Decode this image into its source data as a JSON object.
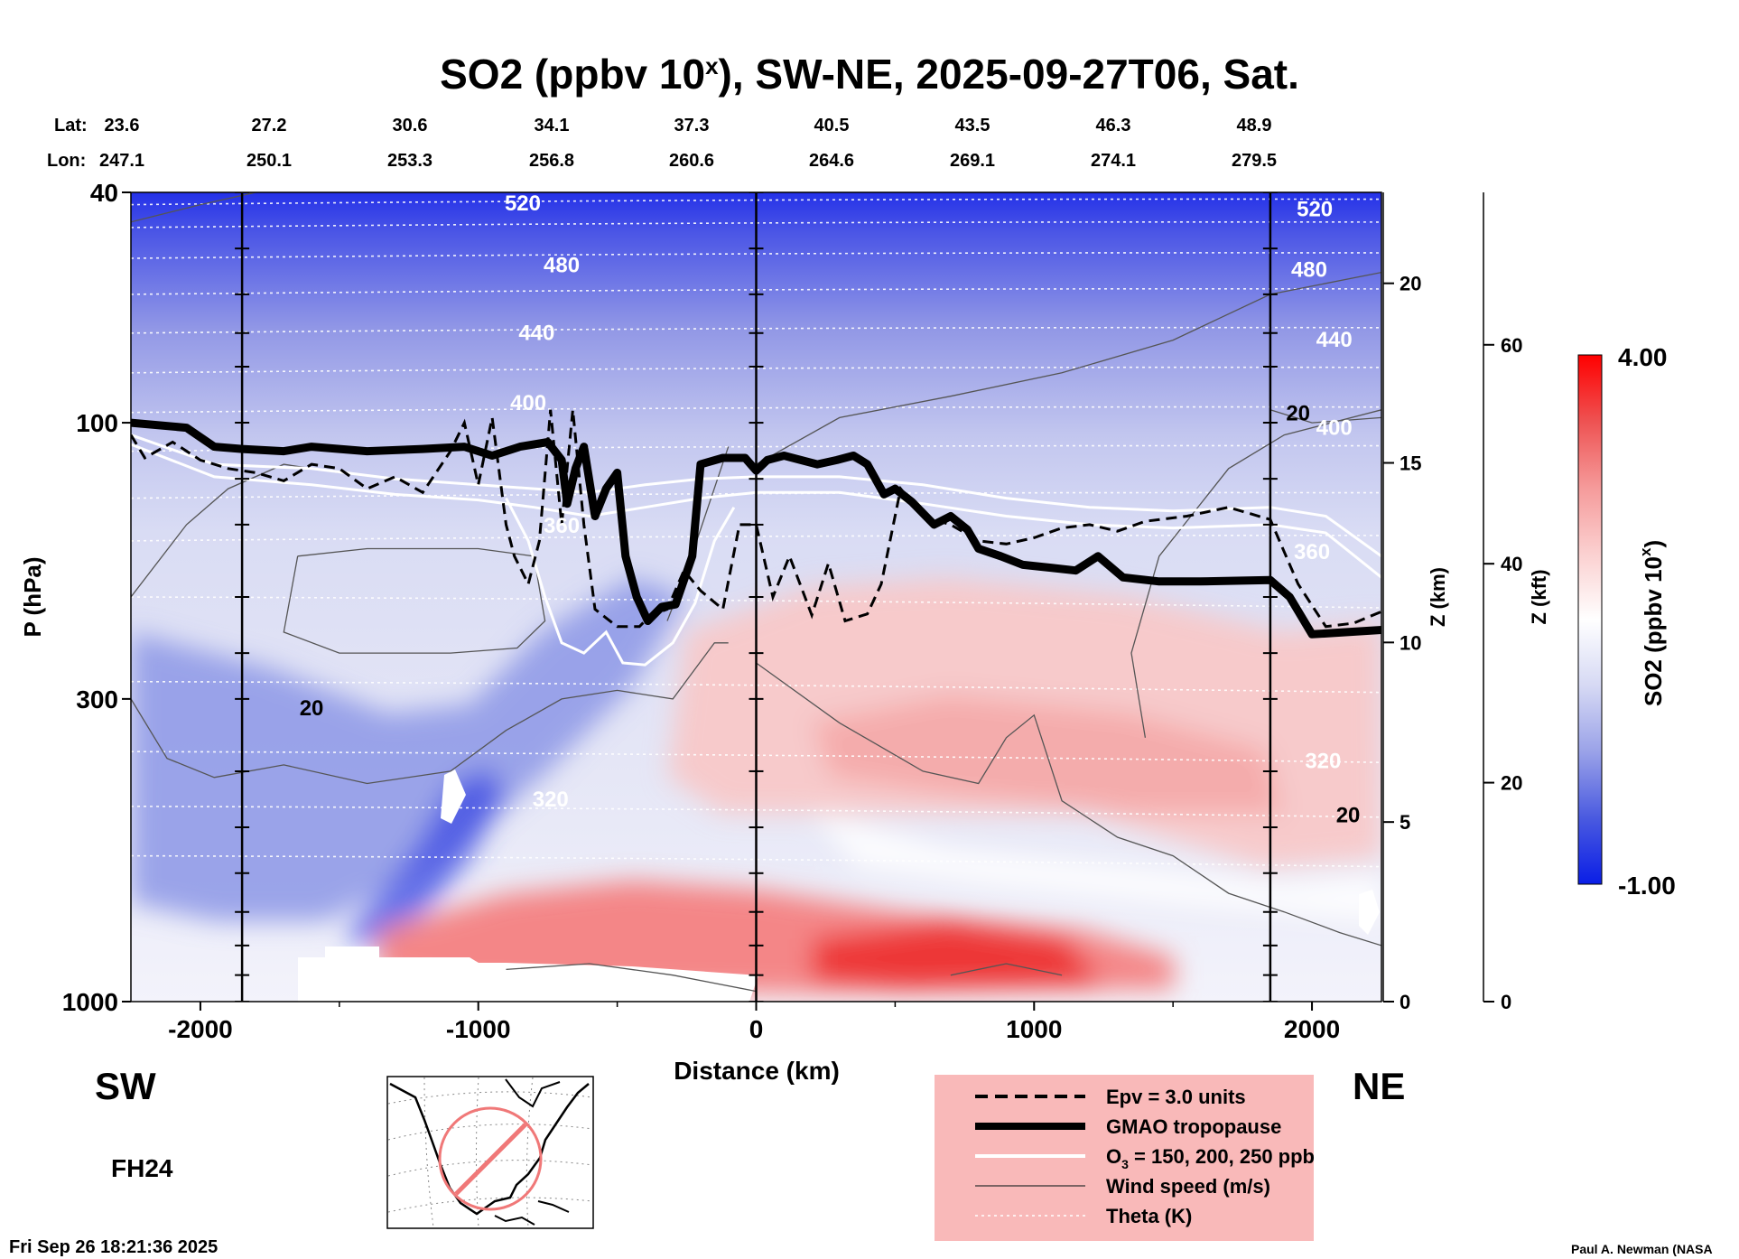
{
  "chart_data": {
    "type": "heatmap",
    "title": "SO2 (ppbv 10",
    "title_sup": "x",
    "title_tail": "), SW-NE, 2025-09-27T06, Sat.",
    "lat_label": "Lat:",
    "lon_label": "Lon:",
    "lat_ticks": [
      "23.6",
      "27.2",
      "30.6",
      "34.1",
      "37.3",
      "40.5",
      "43.5",
      "46.3",
      "48.9"
    ],
    "lon_ticks": [
      "247.1",
      "250.1",
      "253.3",
      "256.8",
      "260.6",
      "264.6",
      "269.1",
      "274.1",
      "279.5"
    ],
    "xlabel": "Distance (km)",
    "xlim": [
      -2250,
      2250
    ],
    "x_ticks": [
      -2000,
      -1000,
      0,
      1000,
      2000
    ],
    "x_tick_labels": [
      "-2000",
      "-1000",
      "0",
      "1000",
      "2000"
    ],
    "ylabel": "P (hPa)",
    "y_scale": "log",
    "ylim": [
      1000,
      40
    ],
    "y_ticks": [
      40,
      100,
      300,
      1000
    ],
    "y_tick_labels": [
      "40",
      "100",
      "300",
      "1000"
    ],
    "z_km_label": "Z (km)",
    "z_km_ticks": [
      0,
      5,
      10,
      15,
      20
    ],
    "z_km_tick_labels": [
      "0",
      "5",
      "10",
      "15",
      "20"
    ],
    "z_kft_label": "Z (kft)",
    "z_kft_ticks": [
      0,
      20,
      40,
      60
    ],
    "z_kft_tick_labels": [
      "0",
      "20",
      "40",
      "60"
    ],
    "colorbar_label": "SO2 (ppbv 10",
    "colorbar_label_sup": "x",
    "colorbar_label_tail": ")",
    "colorbar_range": [
      -1.0,
      4.0
    ],
    "colorbar_max_label": "4.00",
    "colorbar_min_label": "-1.00",
    "colormap": [
      "#0a1ee6",
      "#4a5ae0",
      "#9aa2e8",
      "#d6d9f4",
      "#ffffff",
      "#fbd0d0",
      "#f59a9a",
      "#ee5252",
      "#ff0000"
    ],
    "vertical_lines_km": [
      -1850,
      0,
      1850
    ],
    "theta_contour_labels": [
      {
        "text": "520",
        "x_km": -840,
        "p": 43
      },
      {
        "text": "480",
        "x_km": -700,
        "p": 55
      },
      {
        "text": "440",
        "x_km": -790,
        "p": 72
      },
      {
        "text": "400",
        "x_km": -820,
        "p": 95
      },
      {
        "text": "360",
        "x_km": -700,
        "p": 155
      },
      {
        "text": "320",
        "x_km": -740,
        "p": 460
      },
      {
        "text": "520",
        "x_km": 2010,
        "p": 44
      },
      {
        "text": "480",
        "x_km": 1990,
        "p": 56
      },
      {
        "text": "440",
        "x_km": 2080,
        "p": 74
      },
      {
        "text": "400",
        "x_km": 2080,
        "p": 105
      },
      {
        "text": "360",
        "x_km": 2000,
        "p": 172
      },
      {
        "text": "320",
        "x_km": 2040,
        "p": 395
      }
    ],
    "wind_contour_labels": [
      {
        "text": "20",
        "x_km": -1600,
        "p": 320
      },
      {
        "text": "20",
        "x_km": 1950,
        "p": 99
      },
      {
        "text": "20",
        "x_km": 2130,
        "p": 490
      }
    ],
    "tropopause": [
      [
        -2250,
        100
      ],
      [
        -2050,
        102
      ],
      [
        -1950,
        110
      ],
      [
        -1850,
        111
      ],
      [
        -1700,
        112
      ],
      [
        -1600,
        110
      ],
      [
        -1400,
        112
      ],
      [
        -1200,
        111
      ],
      [
        -1050,
        110
      ],
      [
        -950,
        114
      ],
      [
        -850,
        110
      ],
      [
        -750,
        108
      ],
      [
        -700,
        116
      ],
      [
        -680,
        138
      ],
      [
        -650,
        120
      ],
      [
        -620,
        110
      ],
      [
        -580,
        145
      ],
      [
        -540,
        130
      ],
      [
        -500,
        122
      ],
      [
        -470,
        170
      ],
      [
        -430,
        200
      ],
      [
        -390,
        220
      ],
      [
        -340,
        208
      ],
      [
        -290,
        206
      ],
      [
        -230,
        170
      ],
      [
        -200,
        118
      ],
      [
        -120,
        115
      ],
      [
        -40,
        115
      ],
      [
        0,
        121
      ],
      [
        40,
        116
      ],
      [
        100,
        114
      ],
      [
        220,
        118
      ],
      [
        290,
        116
      ],
      [
        350,
        114
      ],
      [
        400,
        118
      ],
      [
        460,
        133
      ],
      [
        500,
        130
      ],
      [
        560,
        137
      ],
      [
        640,
        150
      ],
      [
        700,
        145
      ],
      [
        760,
        153
      ],
      [
        800,
        165
      ],
      [
        880,
        170
      ],
      [
        960,
        176
      ],
      [
        1060,
        178
      ],
      [
        1150,
        180
      ],
      [
        1230,
        170
      ],
      [
        1320,
        185
      ],
      [
        1450,
        188
      ],
      [
        1600,
        188
      ],
      [
        1850,
        187
      ],
      [
        1920,
        200
      ],
      [
        2000,
        232
      ],
      [
        2250,
        228
      ]
    ],
    "epv_line": [
      [
        -2250,
        105
      ],
      [
        -2200,
        115
      ],
      [
        -2100,
        108
      ],
      [
        -2000,
        116
      ],
      [
        -1900,
        120
      ],
      [
        -1800,
        122
      ],
      [
        -1700,
        126
      ],
      [
        -1600,
        118
      ],
      [
        -1500,
        120
      ],
      [
        -1400,
        130
      ],
      [
        -1300,
        124
      ],
      [
        -1200,
        132
      ],
      [
        -1100,
        112
      ],
      [
        -1050,
        100
      ],
      [
        -1000,
        128
      ],
      [
        -950,
        98
      ],
      [
        -900,
        150
      ],
      [
        -870,
        170
      ],
      [
        -820,
        190
      ],
      [
        -780,
        160
      ],
      [
        -740,
        95
      ],
      [
        -700,
        150
      ],
      [
        -660,
        95
      ],
      [
        -620,
        150
      ],
      [
        -580,
        210
      ],
      [
        -500,
        225
      ],
      [
        -420,
        225
      ],
      [
        -380,
        215
      ],
      [
        -320,
        210
      ],
      [
        -260,
        180
      ],
      [
        -200,
        195
      ],
      [
        -120,
        210
      ],
      [
        -60,
        150
      ],
      [
        0,
        150
      ],
      [
        60,
        200
      ],
      [
        120,
        170
      ],
      [
        200,
        215
      ],
      [
        260,
        175
      ],
      [
        320,
        220
      ],
      [
        400,
        214
      ],
      [
        450,
        190
      ],
      [
        520,
        130
      ],
      [
        600,
        145
      ],
      [
        700,
        150
      ],
      [
        800,
        160
      ],
      [
        900,
        162
      ],
      [
        1000,
        158
      ],
      [
        1100,
        152
      ],
      [
        1200,
        150
      ],
      [
        1300,
        154
      ],
      [
        1400,
        148
      ],
      [
        1550,
        145
      ],
      [
        1700,
        140
      ],
      [
        1850,
        147
      ],
      [
        1950,
        190
      ],
      [
        2050,
        225
      ],
      [
        2150,
        222
      ],
      [
        2250,
        212
      ]
    ],
    "ozone_contours": [
      [
        [
          -2250,
          105
        ],
        [
          -1950,
          118
        ],
        [
          -1600,
          120
        ],
        [
          -1300,
          125
        ],
        [
          -1000,
          128
        ],
        [
          -800,
          130
        ],
        [
          -600,
          132
        ],
        [
          -400,
          128
        ],
        [
          -200,
          125
        ],
        [
          0,
          124
        ],
        [
          300,
          124
        ],
        [
          600,
          128
        ],
        [
          900,
          135
        ],
        [
          1200,
          140
        ],
        [
          1500,
          142
        ],
        [
          1850,
          140
        ],
        [
          2050,
          145
        ],
        [
          2250,
          170
        ]
      ],
      [
        [
          -2250,
          109
        ],
        [
          -1950,
          124
        ],
        [
          -1600,
          128
        ],
        [
          -1300,
          133
        ],
        [
          -1000,
          136
        ],
        [
          -800,
          140
        ],
        [
          -600,
          145
        ],
        [
          -400,
          140
        ],
        [
          -200,
          135
        ],
        [
          0,
          132
        ],
        [
          300,
          132
        ],
        [
          600,
          138
        ],
        [
          900,
          145
        ],
        [
          1200,
          150
        ],
        [
          1500,
          152
        ],
        [
          1850,
          150
        ],
        [
          2050,
          155
        ],
        [
          2250,
          185
        ]
      ],
      [
        [
          -900,
          135
        ],
        [
          -820,
          160
        ],
        [
          -760,
          200
        ],
        [
          -700,
          240
        ],
        [
          -620,
          250
        ],
        [
          -540,
          230
        ],
        [
          -480,
          260
        ],
        [
          -400,
          262
        ],
        [
          -300,
          240
        ],
        [
          -220,
          205
        ],
        [
          -150,
          160
        ],
        [
          -80,
          140
        ]
      ]
    ],
    "wind_contours": [
      [
        [
          -2250,
          45
        ],
        [
          -2000,
          42
        ],
        [
          -1800,
          40
        ]
      ],
      [
        [
          -2250,
          300
        ],
        [
          -2120,
          380
        ],
        [
          -1950,
          410
        ],
        [
          -1700,
          390
        ],
        [
          -1400,
          420
        ],
        [
          -1100,
          400
        ],
        [
          -900,
          340
        ],
        [
          -700,
          300
        ],
        [
          -500,
          290
        ],
        [
          -300,
          300
        ],
        [
          -150,
          240
        ],
        [
          -100,
          240
        ]
      ],
      [
        [
          -1650,
          170
        ],
        [
          -1400,
          165
        ],
        [
          -1000,
          165
        ],
        [
          -800,
          170
        ],
        [
          -760,
          220
        ],
        [
          -860,
          245
        ],
        [
          -1100,
          250
        ],
        [
          -1500,
          250
        ],
        [
          -1700,
          230
        ],
        [
          -1650,
          170
        ]
      ],
      [
        [
          -2250,
          200
        ],
        [
          -2050,
          150
        ],
        [
          -1900,
          130
        ],
        [
          -1700,
          118
        ],
        [
          -1500,
          122
        ]
      ],
      [
        [
          0,
          118
        ],
        [
          300,
          98
        ],
        [
          700,
          90
        ],
        [
          1100,
          82
        ],
        [
          1500,
          72
        ],
        [
          1850,
          60
        ],
        [
          2250,
          55
        ]
      ],
      [
        [
          -100,
          110
        ],
        [
          -250,
          180
        ],
        [
          -320,
          220
        ]
      ],
      [
        [
          0,
          260
        ],
        [
          300,
          330
        ],
        [
          600,
          400
        ],
        [
          800,
          420
        ],
        [
          900,
          350
        ],
        [
          1000,
          320
        ],
        [
          1100,
          450
        ],
        [
          1300,
          520
        ],
        [
          1500,
          560
        ],
        [
          1700,
          650
        ],
        [
          1900,
          700
        ],
        [
          2100,
          760
        ],
        [
          2250,
          800
        ]
      ],
      [
        [
          1850,
          95
        ],
        [
          2000,
          100
        ],
        [
          2250,
          98
        ]
      ],
      [
        [
          1400,
          350
        ],
        [
          1350,
          250
        ],
        [
          1450,
          170
        ],
        [
          1700,
          120
        ],
        [
          1900,
          105
        ],
        [
          2250,
          95
        ]
      ],
      [
        [
          -900,
          880
        ],
        [
          -600,
          860
        ],
        [
          -300,
          900
        ],
        [
          0,
          960
        ]
      ],
      [
        [
          700,
          900
        ],
        [
          900,
          860
        ],
        [
          1100,
          900
        ]
      ]
    ],
    "legend": [
      {
        "label": "Epv = 3.0 units",
        "style": "dashed"
      },
      {
        "label": "GMAO tropopause",
        "style": "thick"
      },
      {
        "label": "O",
        "sub": "3",
        "tail": " = 150, 200, 250 ppb",
        "style": "white"
      },
      {
        "label": "Wind speed (m/s)",
        "style": "thin"
      },
      {
        "label": "Theta (K)",
        "style": "dotted"
      }
    ],
    "legend_bg": "#f9b9b9",
    "left_end_label": "SW",
    "right_end_label": "NE",
    "forecast_label": "FH24",
    "timestamp": "Fri Sep 26 18:21:36 2025",
    "credit": "Paul A. Newman (NASA"
  }
}
